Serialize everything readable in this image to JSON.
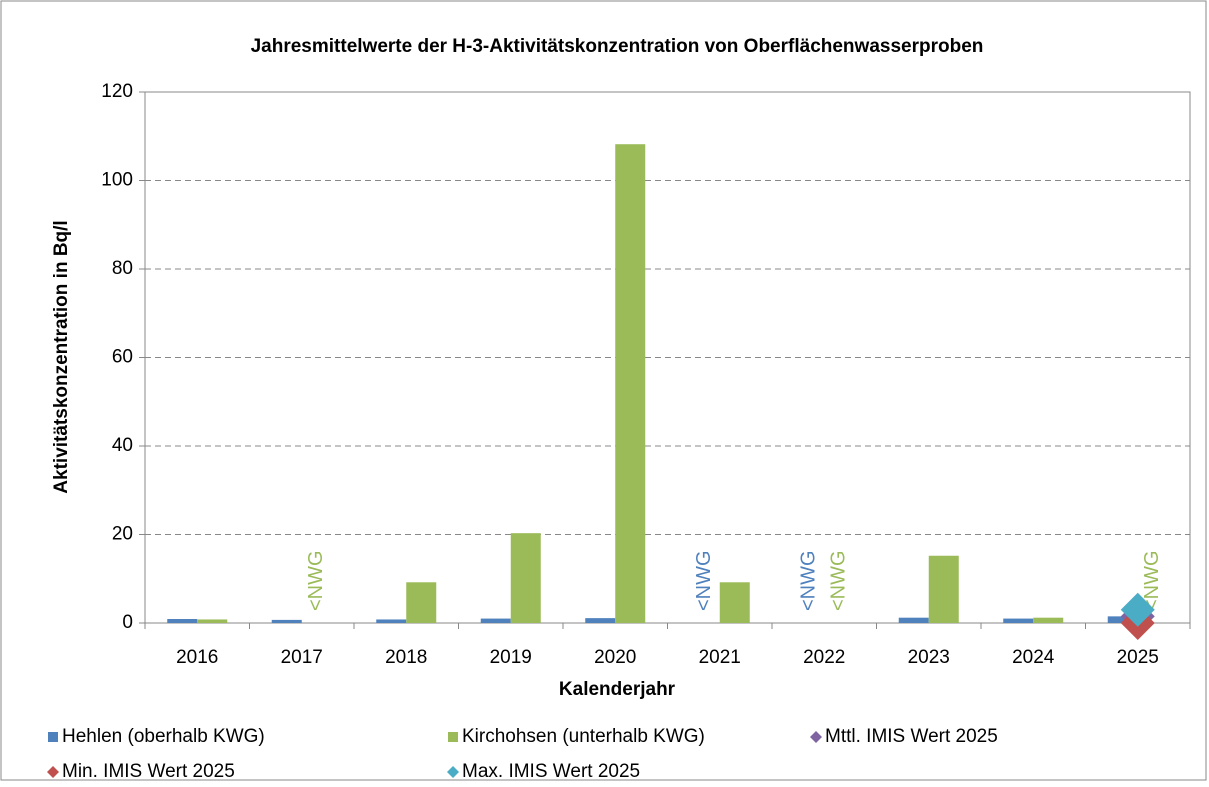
{
  "chart_data": {
    "type": "bar",
    "title": "Jahresmittelwerte der H-3-Aktivitätskonzentration von Oberflächenwasserproben",
    "x_label": "Kalenderjahr",
    "y_label": "Aktivitätskonzentration in Bq/l",
    "categories": [
      "2016",
      "2017",
      "2018",
      "2019",
      "2020",
      "2021",
      "2022",
      "2023",
      "2024",
      "2025"
    ],
    "series": [
      {
        "name": "Hehlen (oberhalb KWG)",
        "type": "bar",
        "color": "#4f81bd",
        "values": [
          0.9,
          0.7,
          0.8,
          1.0,
          1.1,
          null,
          null,
          1.2,
          1.0,
          1.5
        ],
        "value_labels": [
          null,
          null,
          null,
          null,
          null,
          "<NWG",
          "<NWG",
          null,
          null,
          null
        ]
      },
      {
        "name": "Kirchohsen (unterhalb KWG)",
        "type": "bar",
        "color": "#9bbb59",
        "values": [
          0.8,
          null,
          9.2,
          20.3,
          108.2,
          9.2,
          null,
          15.2,
          1.2,
          null
        ],
        "value_labels": [
          null,
          "<NWG",
          null,
          null,
          null,
          null,
          "<NWG",
          null,
          null,
          "<NWG"
        ]
      },
      {
        "name": "Mttl. IMIS Wert 2025",
        "type": "scatter",
        "color": "#8064a2",
        "values": [
          null,
          null,
          null,
          null,
          null,
          null,
          null,
          null,
          null,
          1.5
        ]
      },
      {
        "name": "Min. IMIS Wert 2025",
        "type": "scatter",
        "color": "#c0504d",
        "values": [
          null,
          null,
          null,
          null,
          null,
          null,
          null,
          null,
          null,
          0
        ]
      },
      {
        "name": "Max. IMIS Wert 2025",
        "type": "scatter",
        "color": "#4bacc6",
        "values": [
          null,
          null,
          null,
          null,
          null,
          null,
          null,
          null,
          null,
          3
        ]
      }
    ],
    "ylim": [
      0,
      120
    ],
    "yticks": [
      0,
      20,
      40,
      60,
      80,
      100,
      120
    ],
    "grid": true
  }
}
